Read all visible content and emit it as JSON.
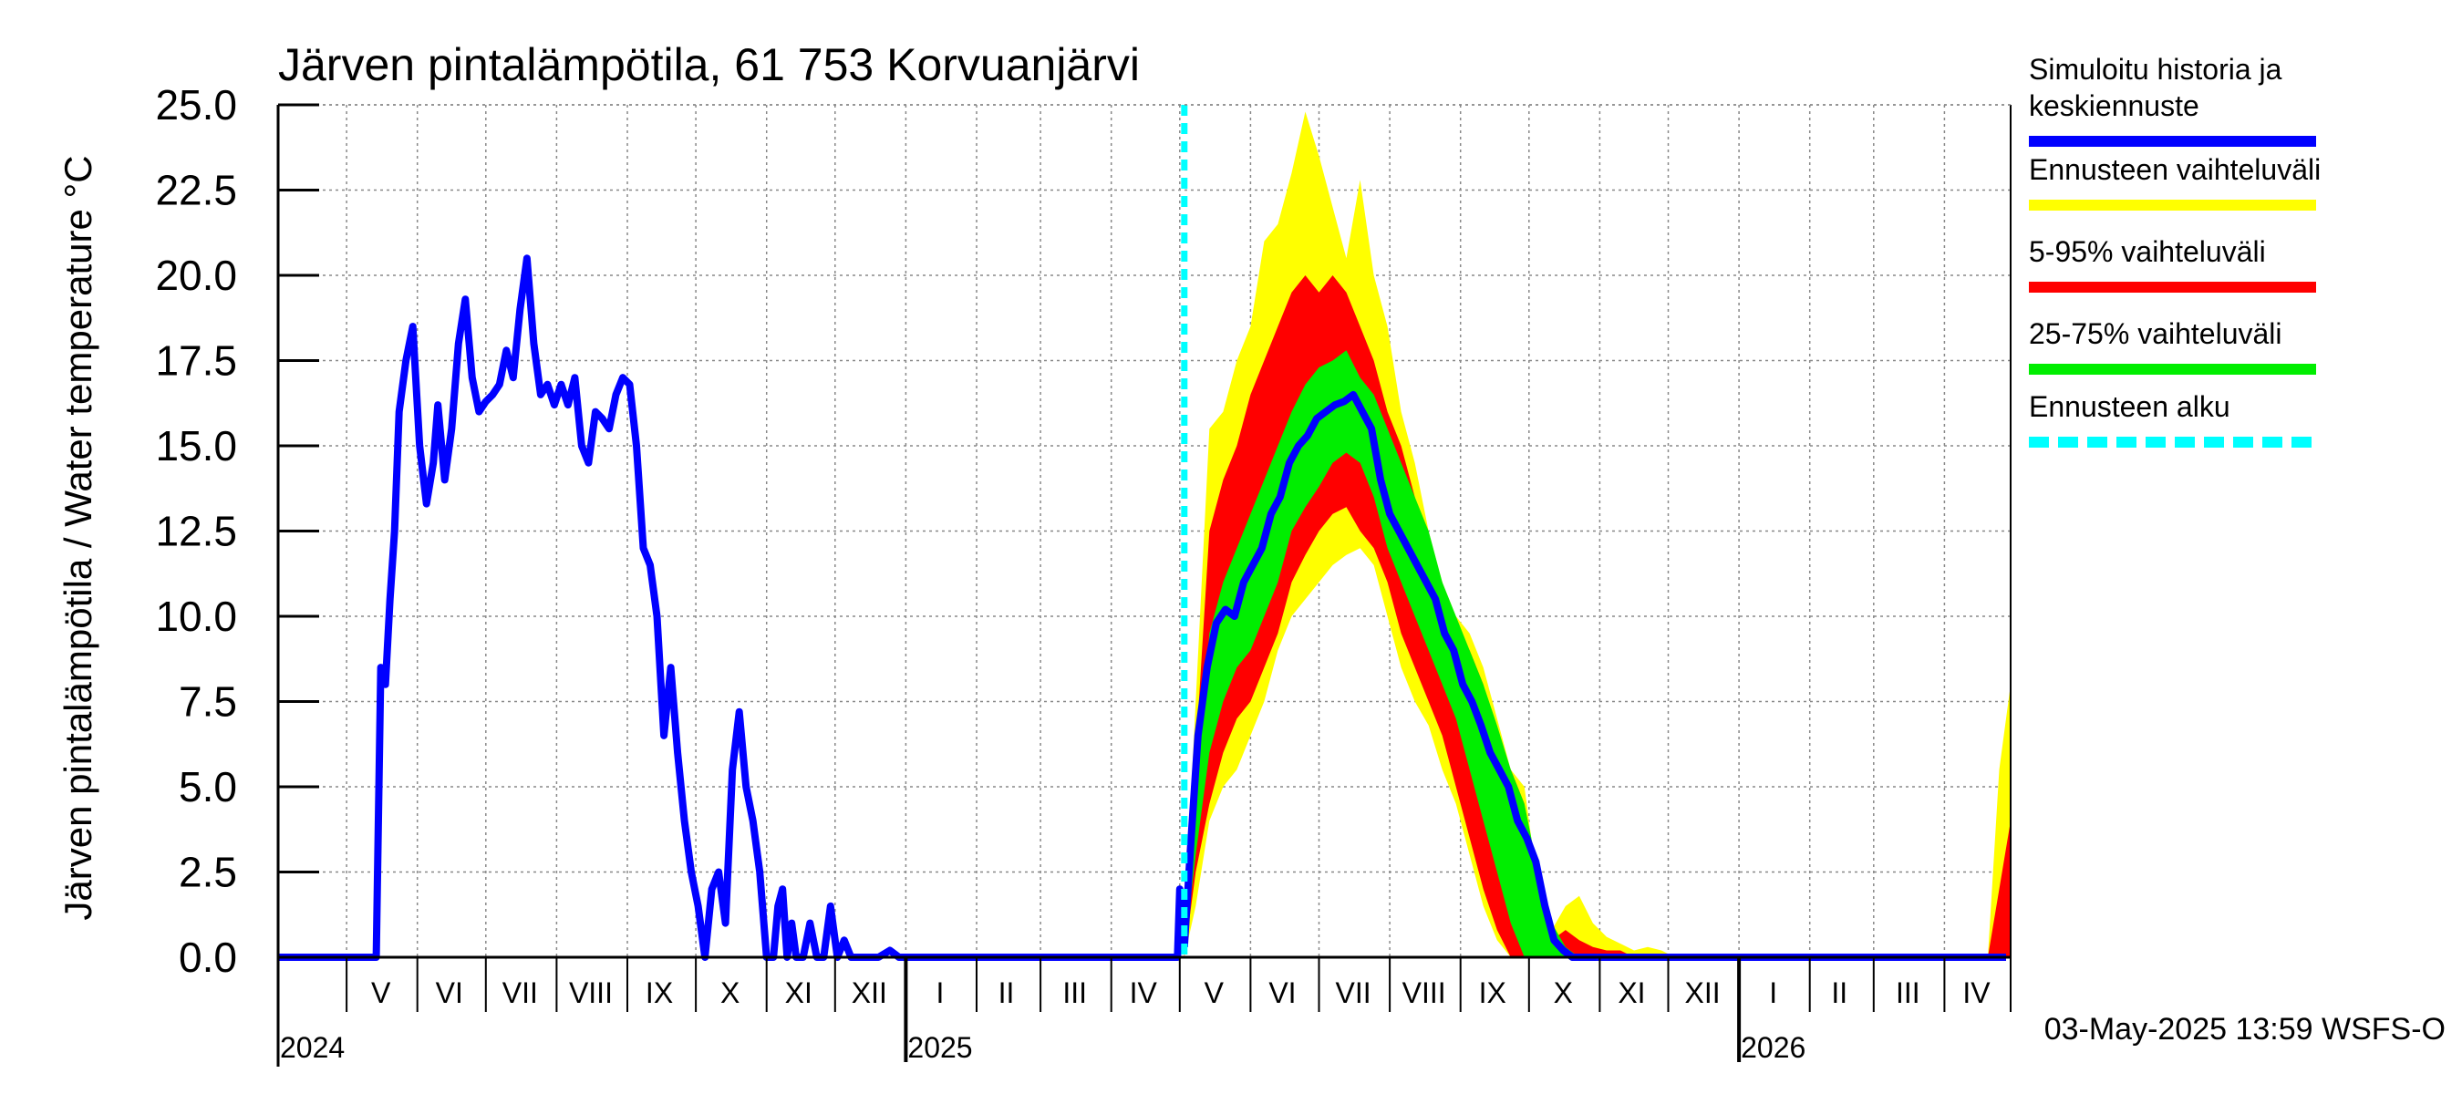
{
  "title": "Järven pintalämpötila, 61 753 Korvuanjärvi",
  "ylabel": "Järven pintalämpötila / Water temperature °C",
  "footer": "03-May-2025 13:59 WSFS-O",
  "colors": {
    "history": "#0000ff",
    "range": "#ffff00",
    "p5_95": "#ff0000",
    "p25_75": "#00ee00",
    "forecast_start": "#00ffff",
    "grid": "#888888",
    "axis": "#000000"
  },
  "legend": [
    {
      "label": "Simuloitu historia ja keskiennuste",
      "color": "#0000ff",
      "style": "solid"
    },
    {
      "label": "Ennusteen vaihteluväli",
      "color": "#ffff00",
      "style": "solid"
    },
    {
      "label": "5-95% vaihteluväli",
      "color": "#ff0000",
      "style": "solid"
    },
    {
      "label": "25-75% vaihteluväli",
      "color": "#00ee00",
      "style": "solid"
    },
    {
      "label": "Ennusteen alku",
      "color": "#00ffff",
      "style": "dashed"
    }
  ],
  "chart_data": {
    "type": "area",
    "title": "Järven pintalämpötila, 61 753 Korvuanjärvi",
    "ylabel": "Järven pintalämpötila / Water temperature °C",
    "xlim": [
      "2024-04-01",
      "2026-04-30"
    ],
    "ylim": [
      0,
      25
    ],
    "yticks": [
      "0.0",
      "2.5",
      "5.0",
      "7.5",
      "10.0",
      "12.5",
      "15.0",
      "17.5",
      "20.0",
      "22.5",
      "25.0"
    ],
    "month_labels": [
      {
        "label": "V",
        "date": "2024-05-16"
      },
      {
        "label": "VI",
        "date": "2024-06-15"
      },
      {
        "label": "VII",
        "date": "2024-07-16"
      },
      {
        "label": "VIII",
        "date": "2024-08-16"
      },
      {
        "label": "IX",
        "date": "2024-09-15"
      },
      {
        "label": "X",
        "date": "2024-10-16"
      },
      {
        "label": "XI",
        "date": "2024-11-15"
      },
      {
        "label": "XII",
        "date": "2024-12-16"
      },
      {
        "label": "I",
        "date": "2025-01-16"
      },
      {
        "label": "II",
        "date": "2025-02-14"
      },
      {
        "label": "III",
        "date": "2025-03-16"
      },
      {
        "label": "IV",
        "date": "2025-04-15"
      },
      {
        "label": "V",
        "date": "2025-05-16"
      },
      {
        "label": "VI",
        "date": "2025-06-15"
      },
      {
        "label": "VII",
        "date": "2025-07-16"
      },
      {
        "label": "VIII",
        "date": "2025-08-16"
      },
      {
        "label": "IX",
        "date": "2025-09-15"
      },
      {
        "label": "X",
        "date": "2025-10-16"
      },
      {
        "label": "XI",
        "date": "2025-11-15"
      },
      {
        "label": "XII",
        "date": "2025-12-16"
      },
      {
        "label": "I",
        "date": "2026-01-16"
      },
      {
        "label": "II",
        "date": "2026-02-14"
      },
      {
        "label": "III",
        "date": "2026-03-16"
      },
      {
        "label": "IV",
        "date": "2026-04-15"
      }
    ],
    "year_labels": [
      {
        "label": "2024",
        "date": "2024-04-01"
      },
      {
        "label": "2025",
        "date": "2025-01-01"
      },
      {
        "label": "2026",
        "date": "2026-01-01"
      }
    ],
    "month_boundaries": [
      "2024-05-01",
      "2024-06-01",
      "2024-07-01",
      "2024-08-01",
      "2024-09-01",
      "2024-10-01",
      "2024-11-01",
      "2024-12-01",
      "2025-01-01",
      "2025-02-01",
      "2025-03-01",
      "2025-04-01",
      "2025-05-01",
      "2025-06-01",
      "2025-07-01",
      "2025-08-01",
      "2025-09-01",
      "2025-10-01",
      "2025-11-01",
      "2025-12-01",
      "2026-01-01",
      "2026-02-01",
      "2026-03-01",
      "2026-04-01"
    ],
    "year_boundaries": [
      "2025-01-01",
      "2026-01-01"
    ],
    "forecast_start": "2025-05-03",
    "series": [
      {
        "name": "Simuloitu historia ja keskiennuste",
        "role": "history",
        "x": [
          "2024-04-01",
          "2024-05-14",
          "2024-05-16",
          "2024-05-18",
          "2024-05-20",
          "2024-05-22",
          "2024-05-24",
          "2024-05-27",
          "2024-05-30",
          "2024-06-02",
          "2024-06-05",
          "2024-06-08",
          "2024-06-10",
          "2024-06-13",
          "2024-06-16",
          "2024-06-19",
          "2024-06-22",
          "2024-06-25",
          "2024-06-28",
          "2024-07-01",
          "2024-07-04",
          "2024-07-07",
          "2024-07-10",
          "2024-07-13",
          "2024-07-16",
          "2024-07-19",
          "2024-07-22",
          "2024-07-25",
          "2024-07-28",
          "2024-07-31",
          "2024-08-03",
          "2024-08-06",
          "2024-08-09",
          "2024-08-12",
          "2024-08-15",
          "2024-08-18",
          "2024-08-21",
          "2024-08-24",
          "2024-08-27",
          "2024-08-30",
          "2024-09-02",
          "2024-09-05",
          "2024-09-08",
          "2024-09-11",
          "2024-09-14",
          "2024-09-17",
          "2024-09-20",
          "2024-09-23",
          "2024-09-26",
          "2024-09-29",
          "2024-10-02",
          "2024-10-05",
          "2024-10-08",
          "2024-10-11",
          "2024-10-14",
          "2024-10-17",
          "2024-10-20",
          "2024-10-23",
          "2024-10-26",
          "2024-10-29",
          "2024-11-01",
          "2024-11-04",
          "2024-11-06",
          "2024-11-08",
          "2024-11-10",
          "2024-11-12",
          "2024-11-14",
          "2024-11-17",
          "2024-11-20",
          "2024-11-23",
          "2024-11-26",
          "2024-11-29",
          "2024-12-02",
          "2024-12-05",
          "2024-12-08",
          "2024-12-11",
          "2024-12-14",
          "2024-12-20",
          "2024-12-25",
          "2024-12-29",
          "2025-01-05",
          "2025-04-30",
          "2025-05-01",
          "2025-05-02",
          "2025-05-03"
        ],
        "y": [
          0.0,
          0.0,
          8.5,
          8.0,
          10.5,
          12.5,
          16.0,
          17.5,
          18.5,
          15.0,
          13.3,
          14.5,
          16.2,
          14.0,
          15.5,
          18.0,
          19.3,
          17.0,
          16.0,
          16.3,
          16.5,
          16.8,
          17.8,
          17.0,
          19.0,
          20.5,
          18.0,
          16.5,
          16.8,
          16.2,
          16.8,
          16.2,
          17.0,
          15.0,
          14.5,
          16.0,
          15.8,
          15.5,
          16.5,
          17.0,
          16.8,
          15.0,
          12.0,
          11.5,
          10.0,
          6.5,
          8.5,
          6.0,
          4.0,
          2.5,
          1.5,
          0.0,
          2.0,
          2.5,
          1.0,
          5.5,
          7.2,
          5.0,
          4.0,
          2.5,
          0.0,
          0.0,
          1.5,
          2.0,
          0.0,
          1.0,
          0.0,
          0.0,
          1.0,
          0.0,
          0.0,
          1.5,
          0.0,
          0.5,
          0.0,
          0.0,
          0.0,
          0.0,
          0.2,
          0.0,
          0.0,
          0.0,
          2.0,
          0.8,
          0.3
        ]
      },
      {
        "name": "Simuloitu historia ja keskiennuste",
        "role": "median",
        "x": [
          "2025-05-03",
          "2025-05-06",
          "2025-05-09",
          "2025-05-13",
          "2025-05-17",
          "2025-05-21",
          "2025-05-25",
          "2025-05-29",
          "2025-06-02",
          "2025-06-06",
          "2025-06-10",
          "2025-06-14",
          "2025-06-18",
          "2025-06-22",
          "2025-06-26",
          "2025-06-30",
          "2025-07-04",
          "2025-07-08",
          "2025-07-12",
          "2025-07-16",
          "2025-07-20",
          "2025-07-24",
          "2025-07-28",
          "2025-08-01",
          "2025-08-05",
          "2025-08-09",
          "2025-08-13",
          "2025-08-17",
          "2025-08-21",
          "2025-08-25",
          "2025-08-29",
          "2025-09-02",
          "2025-09-06",
          "2025-09-10",
          "2025-09-14",
          "2025-09-18",
          "2025-09-22",
          "2025-09-26",
          "2025-09-30",
          "2025-10-04",
          "2025-10-08",
          "2025-10-12",
          "2025-10-16",
          "2025-10-20",
          "2025-10-25",
          "2025-10-31"
        ],
        "y": [
          0.3,
          3.5,
          6.5,
          8.5,
          9.8,
          10.2,
          10.0,
          11.0,
          11.5,
          12.0,
          13.0,
          13.5,
          14.5,
          15.0,
          15.3,
          15.8,
          16.0,
          16.2,
          16.3,
          16.5,
          16.0,
          15.5,
          14.0,
          13.0,
          12.5,
          12.0,
          11.5,
          11.0,
          10.5,
          9.5,
          9.0,
          8.0,
          7.5,
          6.8,
          6.0,
          5.5,
          5.0,
          4.0,
          3.5,
          2.8,
          1.5,
          0.5,
          0.2,
          0.0,
          0.0,
          0.0
        ]
      },
      {
        "name": "Ennusteen vaihteluväli",
        "role": "band",
        "x": [
          "2025-05-03",
          "2025-05-08",
          "2025-05-14",
          "2025-05-20",
          "2025-05-26",
          "2025-06-01",
          "2025-06-07",
          "2025-06-13",
          "2025-06-19",
          "2025-06-25",
          "2025-07-01",
          "2025-07-07",
          "2025-07-13",
          "2025-07-19",
          "2025-07-25",
          "2025-07-31",
          "2025-08-06",
          "2025-08-12",
          "2025-08-18",
          "2025-08-24",
          "2025-08-30",
          "2025-09-05",
          "2025-09-11",
          "2025-09-17",
          "2025-09-23",
          "2025-09-29",
          "2025-10-05",
          "2025-10-11",
          "2025-10-17",
          "2025-10-23",
          "2025-10-29",
          "2025-11-04",
          "2025-11-10",
          "2025-11-16",
          "2025-11-22",
          "2025-11-28",
          "2025-12-04",
          "2025-12-10",
          "2026-04-20",
          "2026-04-25",
          "2026-04-30"
        ],
        "low": [
          0.0,
          1.5,
          4.0,
          5.0,
          5.5,
          6.5,
          7.5,
          9.0,
          10.0,
          10.5,
          11.0,
          11.5,
          11.8,
          12.0,
          11.5,
          10.0,
          8.5,
          7.5,
          6.8,
          5.5,
          4.5,
          3.0,
          1.5,
          0.5,
          0.0,
          0.0,
          0.0,
          0.0,
          0.0,
          0.0,
          0.0,
          0.0,
          0.0,
          0.0,
          0.0,
          0.0,
          0.0,
          0.0,
          0.0,
          0.0,
          0.0
        ],
        "high": [
          1.0,
          7.5,
          15.5,
          16.0,
          17.5,
          18.5,
          21.0,
          21.5,
          23.0,
          24.8,
          23.5,
          22.0,
          20.5,
          22.8,
          20.0,
          18.5,
          16.0,
          14.5,
          12.5,
          11.0,
          10.0,
          9.5,
          8.5,
          7.0,
          5.5,
          5.0,
          2.0,
          0.8,
          1.5,
          1.8,
          1.0,
          0.6,
          0.4,
          0.2,
          0.3,
          0.2,
          0.0,
          0.0,
          0.0,
          5.5,
          8.0
        ]
      },
      {
        "name": "5-95% vaihteluväli",
        "role": "band",
        "x": [
          "2025-05-03",
          "2025-05-08",
          "2025-05-14",
          "2025-05-20",
          "2025-05-26",
          "2025-06-01",
          "2025-06-07",
          "2025-06-13",
          "2025-06-19",
          "2025-06-25",
          "2025-07-01",
          "2025-07-07",
          "2025-07-13",
          "2025-07-19",
          "2025-07-25",
          "2025-07-31",
          "2025-08-06",
          "2025-08-12",
          "2025-08-18",
          "2025-08-24",
          "2025-08-30",
          "2025-09-05",
          "2025-09-11",
          "2025-09-17",
          "2025-09-23",
          "2025-09-29",
          "2025-10-05",
          "2025-10-11",
          "2025-10-17",
          "2025-10-23",
          "2025-10-29",
          "2025-11-04",
          "2025-11-10",
          "2025-11-16",
          "2025-11-22",
          "2025-11-28",
          "2026-04-20",
          "2026-04-25",
          "2026-04-30"
        ],
        "low": [
          0.0,
          2.5,
          4.5,
          6.0,
          7.0,
          7.5,
          8.5,
          9.5,
          11.0,
          11.8,
          12.5,
          13.0,
          13.2,
          12.5,
          12.0,
          11.0,
          9.5,
          8.5,
          7.5,
          6.5,
          5.0,
          3.5,
          2.0,
          0.8,
          0.0,
          0.0,
          0.0,
          0.0,
          0.0,
          0.0,
          0.0,
          0.0,
          0.0,
          0.0,
          0.0,
          0.0,
          0.0,
          0.0,
          0.0
        ],
        "high": [
          0.8,
          6.0,
          12.5,
          14.0,
          15.0,
          16.5,
          17.5,
          18.5,
          19.5,
          20.0,
          19.5,
          20.0,
          19.5,
          18.5,
          17.5,
          16.0,
          15.0,
          13.5,
          12.0,
          11.0,
          9.5,
          9.0,
          8.0,
          6.5,
          5.5,
          4.5,
          2.0,
          0.5,
          0.8,
          0.5,
          0.3,
          0.2,
          0.2,
          0.0,
          0.0,
          0.0,
          0.0,
          2.0,
          4.0
        ]
      },
      {
        "name": "25-75% vaihteluväli",
        "role": "band",
        "x": [
          "2025-05-03",
          "2025-05-08",
          "2025-05-14",
          "2025-05-20",
          "2025-05-26",
          "2025-06-01",
          "2025-06-07",
          "2025-06-13",
          "2025-06-19",
          "2025-06-25",
          "2025-07-01",
          "2025-07-07",
          "2025-07-13",
          "2025-07-19",
          "2025-07-25",
          "2025-07-31",
          "2025-08-06",
          "2025-08-12",
          "2025-08-18",
          "2025-08-24",
          "2025-08-30",
          "2025-09-05",
          "2025-09-11",
          "2025-09-17",
          "2025-09-23",
          "2025-09-29",
          "2025-10-05",
          "2025-10-11",
          "2025-10-17",
          "2025-10-23",
          "2025-10-29"
        ],
        "low": [
          0.1,
          3.0,
          6.0,
          7.5,
          8.5,
          9.0,
          10.0,
          11.0,
          12.5,
          13.2,
          13.8,
          14.5,
          14.8,
          14.5,
          13.5,
          12.0,
          11.0,
          10.0,
          9.0,
          8.0,
          7.0,
          5.5,
          4.0,
          2.5,
          1.0,
          0.0,
          0.0,
          0.0,
          0.0,
          0.0,
          0.0
        ],
        "high": [
          0.5,
          4.5,
          9.5,
          11.0,
          12.0,
          13.0,
          14.0,
          15.0,
          16.0,
          16.8,
          17.3,
          17.5,
          17.8,
          17.0,
          16.5,
          15.5,
          14.5,
          13.5,
          12.5,
          11.0,
          10.0,
          9.0,
          8.0,
          6.8,
          5.5,
          4.5,
          2.5,
          1.0,
          0.3,
          0.0,
          0.0
        ]
      }
    ]
  }
}
